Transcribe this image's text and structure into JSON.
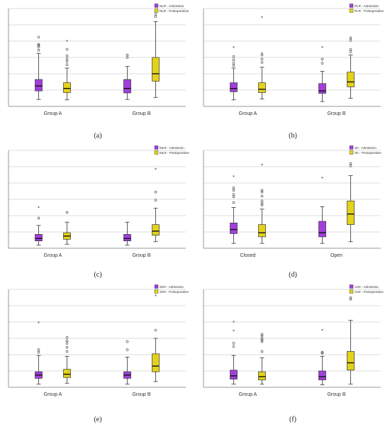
{
  "colors": {
    "admission": "#a23fdc",
    "postoperative": "#e3d21a",
    "median": "#111111"
  },
  "chart_data": [
    {
      "type": "box",
      "panel": "a",
      "legend": [
        "NLR - Admission",
        "NLR - Postoperative"
      ],
      "categories": [
        "Group A",
        "Group B"
      ],
      "ylim": [
        0,
        24
      ],
      "series": [
        {
          "name": "NLR - Admission",
          "boxes": [
            {
              "whisker_low": 1.7,
              "q1": 3.8,
              "median": 5.0,
              "q3": 6.6,
              "whisker_high": 13.0,
              "outliers": [
                13.8,
                14.6,
                15.0,
                15.2,
                17.0
              ]
            },
            {
              "whisker_low": 1.7,
              "q1": 3.3,
              "median": 4.4,
              "q3": 6.6,
              "whisker_high": 9.8,
              "outliers": [
                12.0,
                12.6
              ]
            }
          ]
        },
        {
          "name": "NLR - Postoperative",
          "boxes": [
            {
              "whisker_low": 1.6,
              "q1": 3.4,
              "median": 4.4,
              "q3": 5.8,
              "whisker_high": 9.4,
              "outliers": [
                10.2,
                11.0,
                11.6,
                12.4,
                14.0
              ],
              "extremes": [
                16.0
              ]
            },
            {
              "whisker_low": 2.2,
              "q1": 6.2,
              "median": 8.0,
              "q3": 12.0,
              "whisker_high": 20.8,
              "outliers": [
                22.0,
                22.6
              ]
            }
          ]
        }
      ]
    },
    {
      "type": "box",
      "panel": "b",
      "legend": [
        "PLR - Admission",
        "PLR - Postoperative"
      ],
      "categories": [
        "Group A",
        "Group B"
      ],
      "ylim": [
        0,
        24
      ],
      "series": [
        {
          "name": "PLR - Admission",
          "boxes": [
            {
              "whisker_low": 1.6,
              "q1": 3.6,
              "median": 4.4,
              "q3": 5.8,
              "whisker_high": 9.4,
              "outliers": [
                10.0,
                10.6,
                11.4,
                12.2
              ],
              "extremes": [
                14.4
              ]
            },
            {
              "whisker_low": 1.2,
              "q1": 3.2,
              "median": 3.8,
              "q3": 5.6,
              "whisker_high": 8.6,
              "outliers": [
                10.6,
                11.6
              ],
              "extremes": [
                14.4
              ]
            }
          ]
        },
        {
          "name": "PLR - Postoperative",
          "boxes": [
            {
              "whisker_low": 1.8,
              "q1": 3.4,
              "median": 4.2,
              "q3": 5.8,
              "whisker_high": 9.6,
              "outliers": [
                10.8,
                11.6,
                12.6
              ],
              "extremes": [
                13.0,
                21.8
              ]
            },
            {
              "whisker_low": 2.0,
              "q1": 4.8,
              "median": 6.0,
              "q3": 8.4,
              "whisker_high": 12.6,
              "outliers": [
                13.4,
                14.0,
                16.2,
                16.8
              ]
            }
          ]
        }
      ]
    },
    {
      "type": "box",
      "panel": "c",
      "legend": [
        "MLR - Admission",
        "MLR - Postoperative"
      ],
      "categories": [
        "Group A",
        "Group B"
      ],
      "ylim": [
        0,
        24
      ],
      "series": [
        {
          "name": "MLR - Admission",
          "boxes": [
            {
              "whisker_low": 0.8,
              "q1": 1.8,
              "median": 2.4,
              "q3": 3.4,
              "whisker_high": 5.6,
              "outliers": [
                7.4
              ],
              "extremes": [
                10.0
              ]
            },
            {
              "whisker_low": 0.8,
              "q1": 1.8,
              "median": 2.4,
              "q3": 3.4,
              "whisker_high": 6.4,
              "outliers": []
            }
          ]
        },
        {
          "name": "MLR - Postoperative",
          "boxes": [
            {
              "whisker_low": 1.0,
              "q1": 2.2,
              "median": 3.0,
              "q3": 3.8,
              "whisker_high": 6.4,
              "outliers": [
                8.8
              ]
            },
            {
              "whisker_low": 1.6,
              "q1": 3.2,
              "median": 4.2,
              "q3": 5.8,
              "whisker_high": 9.8,
              "outliers": [
                11.8,
                13.8
              ],
              "extremes": [
                19.4
              ]
            }
          ]
        }
      ]
    },
    {
      "type": "box",
      "panel": "d",
      "legend": [
        "SII - Admission",
        "SII - Postoperative"
      ],
      "categories": [
        "Closed",
        "Open"
      ],
      "ylim": [
        0,
        24
      ],
      "series": [
        {
          "name": "SII - Admission",
          "boxes": [
            {
              "whisker_low": 1.2,
              "q1": 3.6,
              "median": 4.6,
              "q3": 6.2,
              "whisker_high": 10.0,
              "outliers": [
                11.2,
                12.6,
                13.2,
                14.2,
                14.8
              ],
              "extremes": [
                17.6
              ]
            },
            {
              "whisker_low": 1.2,
              "q1": 2.8,
              "median": 3.8,
              "q3": 6.6,
              "whisker_high": 10.2,
              "outliers": [],
              "extremes": [
                17.2
              ]
            }
          ]
        },
        {
          "name": "SII - Postoperative",
          "boxes": [
            {
              "whisker_low": 1.2,
              "q1": 2.8,
              "median": 3.8,
              "q3": 5.8,
              "whisker_high": 9.6,
              "outliers": [
                10.6,
                11.0,
                11.6,
                12.8,
                13.8,
                14.2
              ],
              "extremes": [
                20.4
              ]
            },
            {
              "whisker_low": 1.6,
              "q1": 5.8,
              "median": 8.4,
              "q3": 11.6,
              "whisker_high": 17.8,
              "outliers": [
                20.2,
                20.8
              ]
            }
          ]
        }
      ]
    },
    {
      "type": "box",
      "panel": "e",
      "legend": [
        "SIRI - Admission",
        "SIRI - Postoperative"
      ],
      "categories": [
        "Group A",
        "Group B"
      ],
      "ylim": [
        0,
        24
      ],
      "series": [
        {
          "name": "SIRI - Admission",
          "boxes": [
            {
              "whisker_low": 0.8,
              "q1": 2.2,
              "median": 3.0,
              "q3": 3.8,
              "whisker_high": 7.8,
              "outliers": [
                8.6,
                9.2
              ],
              "extremes": [
                15.8
              ]
            },
            {
              "whisker_low": 0.8,
              "q1": 2.2,
              "median": 3.0,
              "q3": 3.8,
              "whisker_high": 7.4,
              "outliers": [
                9.2,
                11.2
              ]
            }
          ]
        },
        {
          "name": "SIRI - Postoperative",
          "boxes": [
            {
              "whisker_low": 1.0,
              "q1": 2.4,
              "median": 3.2,
              "q3": 4.4,
              "whisker_high": 7.6,
              "outliers": [
                8.8,
                9.8,
                10.8,
                11.4,
                12.2
              ]
            },
            {
              "whisker_low": 1.4,
              "q1": 3.8,
              "median": 5.2,
              "q3": 8.2,
              "whisker_high": 12.0,
              "outliers": [
                14.0
              ],
              "extremes": [
                22.4
              ]
            }
          ]
        }
      ]
    },
    {
      "type": "box",
      "panel": "f",
      "legend": [
        "AISI - Admission",
        "AISI - Postoperative"
      ],
      "categories": [
        "Group A",
        "Group B"
      ],
      "ylim": [
        0,
        24
      ],
      "series": [
        {
          "name": "AISI - Admission",
          "boxes": [
            {
              "whisker_low": 0.8,
              "q1": 2.0,
              "median": 2.8,
              "q3": 4.2,
              "whisker_high": 7.8,
              "outliers": [
                10.0,
                10.8
              ],
              "extremes": [
                13.8,
                16.0
              ]
            },
            {
              "whisker_low": 0.6,
              "q1": 1.8,
              "median": 2.6,
              "q3": 4.0,
              "whisker_high": 7.6,
              "outliers": [
                8.4,
                8.6
              ],
              "extremes": [
                14.0
              ]
            }
          ]
        },
        {
          "name": "AISI - Postoperative",
          "boxes": [
            {
              "whisker_low": 0.8,
              "q1": 1.8,
              "median": 2.6,
              "q3": 3.8,
              "whisker_high": 7.2,
              "outliers": [
                8.8,
                11.2,
                11.6,
                12.0,
                12.6,
                13.0
              ]
            },
            {
              "whisker_low": 0.8,
              "q1": 4.2,
              "median": 6.0,
              "q3": 8.8,
              "whisker_high": 16.4,
              "outliers": [
                21.6,
                22.0
              ]
            }
          ]
        }
      ]
    }
  ],
  "panel_labels": [
    "(a)",
    "(b)",
    "(c)",
    "(d)",
    "(e)",
    "(f)"
  ]
}
